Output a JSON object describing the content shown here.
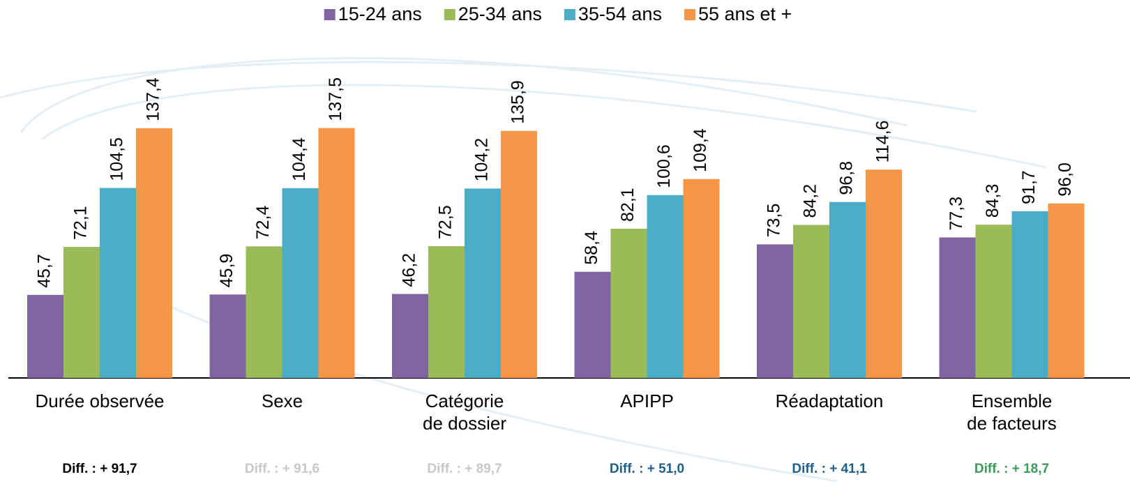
{
  "chart_data": {
    "type": "bar",
    "categories": [
      [
        "Durée observée"
      ],
      [
        "Sexe"
      ],
      [
        "Catégorie",
        "de dossier"
      ],
      [
        "APIPP"
      ],
      [
        "Réadaptation"
      ],
      [
        "Ensemble",
        "de facteurs"
      ]
    ],
    "series": [
      {
        "name": "15-24 ans",
        "color": "#8064a2",
        "values": [
          45.7,
          45.9,
          46.2,
          58.4,
          73.5,
          77.3
        ],
        "value_labels": [
          "45,7",
          "45,9",
          "46,2",
          "58,4",
          "73,5",
          "77,3"
        ]
      },
      {
        "name": "25-34 ans",
        "color": "#9bbb59",
        "values": [
          72.1,
          72.4,
          72.5,
          82.1,
          84.2,
          84.3
        ],
        "value_labels": [
          "72,1",
          "72,4",
          "72,5",
          "82,1",
          "84,2",
          "84,3"
        ]
      },
      {
        "name": "35-54 ans",
        "color": "#4bacc6",
        "values": [
          104.5,
          104.4,
          104.2,
          100.6,
          96.8,
          91.7
        ],
        "value_labels": [
          "104,5",
          "104,4",
          "104,2",
          "100,6",
          "96,8",
          "91,7"
        ]
      },
      {
        "name": "55 ans et +",
        "color": "#f79646",
        "values": [
          137.4,
          137.5,
          135.9,
          109.4,
          114.6,
          96.0
        ],
        "value_labels": [
          "137,4",
          "137,5",
          "135,9",
          "109,4",
          "114,6",
          "96,0"
        ]
      }
    ],
    "ylim": [
      0,
      150
    ],
    "annotations": [
      {
        "text": "Diff. : + 91,7",
        "color": "#000000"
      },
      {
        "text": "Diff. : + 91,6",
        "color": "#c8c8c8"
      },
      {
        "text": "Diff. : + 89,7",
        "color": "#c8c8c8"
      },
      {
        "text": "Diff. : + 51,0",
        "color": "#1f5f8b"
      },
      {
        "text": "Diff. : + 41,1",
        "color": "#1f5f8b"
      },
      {
        "text": "Diff. : + 18,7",
        "color": "#3a9a5a"
      }
    ]
  }
}
